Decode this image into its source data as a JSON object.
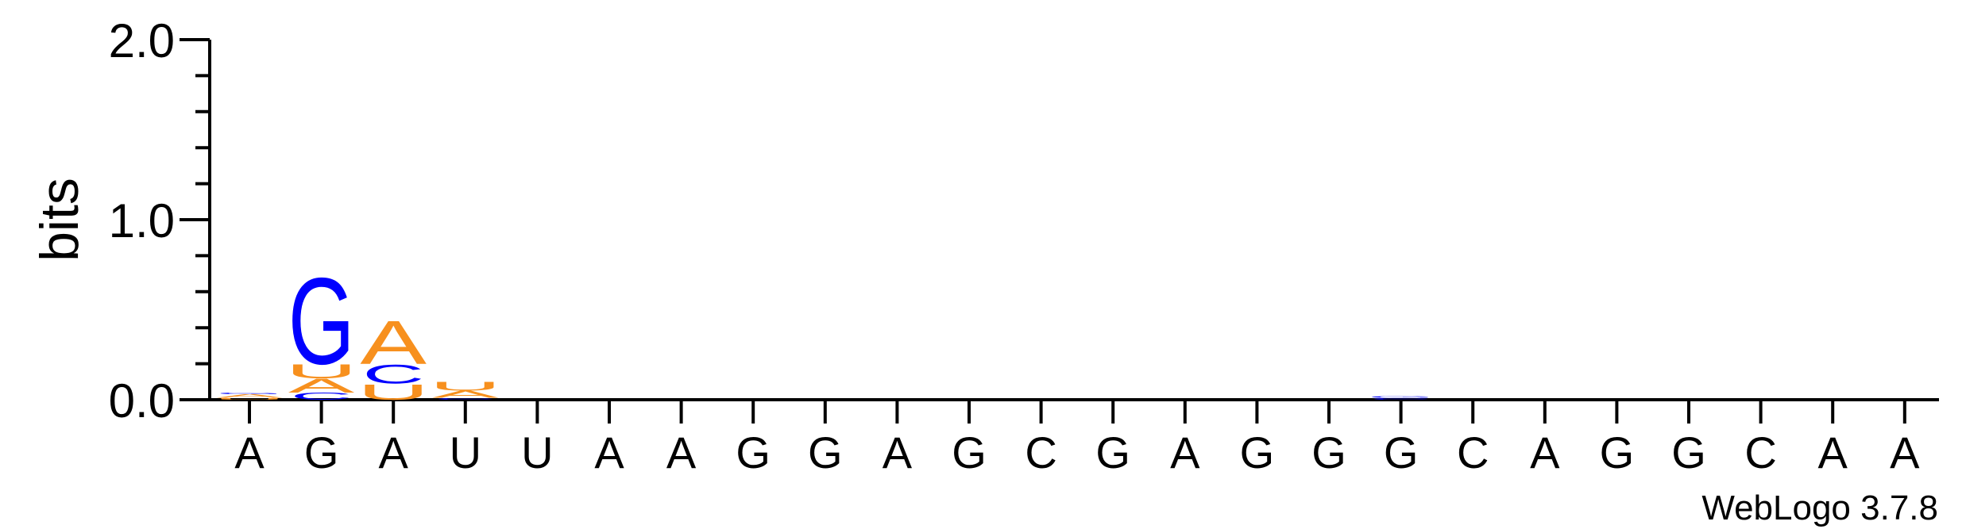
{
  "chart_data": {
    "type": "sequence-logo",
    "ylabel": "bits",
    "ylim": [
      0,
      2.0
    ],
    "y_ticks": [
      "0.0",
      "1.0",
      "2.0"
    ],
    "y_tick_values": [
      0,
      1,
      2
    ],
    "positions": [
      "A",
      "G",
      "A",
      "U",
      "U",
      "A",
      "A",
      "G",
      "G",
      "A",
      "G",
      "C",
      "G",
      "A",
      "G",
      "G",
      "G",
      "C",
      "A",
      "G",
      "G",
      "C",
      "A",
      "A"
    ],
    "stacks": [
      {
        "position": 1,
        "letters": [
          {
            "letter": "U",
            "bits": 0.01
          },
          {
            "letter": "A",
            "bits": 0.02
          },
          {
            "letter": "G",
            "bits": 0.01
          }
        ]
      },
      {
        "position": 2,
        "letters": [
          {
            "letter": "C",
            "bits": 0.04
          },
          {
            "letter": "A",
            "bits": 0.08
          },
          {
            "letter": "U",
            "bits": 0.08
          },
          {
            "letter": "G",
            "bits": 0.5
          }
        ]
      },
      {
        "position": 3,
        "letters": [
          {
            "letter": "U",
            "bits": 0.09
          },
          {
            "letter": "C",
            "bits": 0.11
          },
          {
            "letter": "A",
            "bits": 0.25
          }
        ]
      },
      {
        "position": 4,
        "letters": [
          {
            "letter": "C",
            "bits": 0.01
          },
          {
            "letter": "A",
            "bits": 0.04
          },
          {
            "letter": "U",
            "bits": 0.05
          }
        ]
      },
      {
        "position": 5,
        "letters": []
      },
      {
        "position": 6,
        "letters": []
      },
      {
        "position": 7,
        "letters": []
      },
      {
        "position": 8,
        "letters": []
      },
      {
        "position": 9,
        "letters": []
      },
      {
        "position": 10,
        "letters": []
      },
      {
        "position": 11,
        "letters": []
      },
      {
        "position": 12,
        "letters": []
      },
      {
        "position": 13,
        "letters": []
      },
      {
        "position": 14,
        "letters": []
      },
      {
        "position": 15,
        "letters": []
      },
      {
        "position": 16,
        "letters": []
      },
      {
        "position": 17,
        "letters": [
          {
            "letter": "C",
            "bits": 0.01
          },
          {
            "letter": "G",
            "bits": 0.01
          }
        ]
      },
      {
        "position": 18,
        "letters": []
      },
      {
        "position": 19,
        "letters": []
      },
      {
        "position": 20,
        "letters": []
      },
      {
        "position": 21,
        "letters": []
      },
      {
        "position": 22,
        "letters": []
      },
      {
        "position": 23,
        "letters": []
      },
      {
        "position": 24,
        "letters": []
      }
    ],
    "colors": {
      "A": "#f7901e",
      "U": "#f7901e",
      "G": "#0000ff",
      "C": "#0000ff"
    },
    "credit": "WebLogo 3.7.8"
  }
}
